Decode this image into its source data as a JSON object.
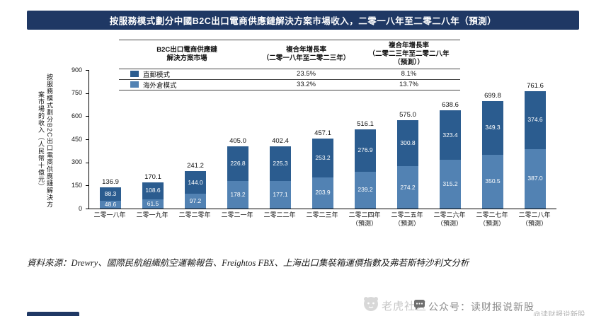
{
  "title": "按服務模式劃分中國B2C出口電商供應鏈解決方案市場收入，二零一八年至二零二八年（預測）",
  "legend_table": {
    "headers": [
      "B2C出口電商供應鏈\n解決方案市場",
      "複合年增長率\n（二零一八年至二零二三年）",
      "複合年增長率\n（二零二三年至二零二八年\n（預測））"
    ],
    "rows": [
      {
        "label": "直郵模式",
        "color": "#2B5C8F",
        "cagr_2018_2023": "23.5%",
        "cagr_2023_2028": "8.1%"
      },
      {
        "label": "海外倉模式",
        "color": "#5282B3",
        "cagr_2018_2023": "33.2%",
        "cagr_2023_2028": "13.7%"
      }
    ]
  },
  "chart_data": {
    "type": "bar",
    "stacked": true,
    "title": "按服務模式劃分中國B2C出口電商供應鏈解決方案市場收入，二零一八年至二零二八年（預測）",
    "ylabel": "按服務模式劃分B2C出口電商供應鏈解決方案市場的收入（人民幣十億元）",
    "ylim": [
      0,
      900
    ],
    "yticks": [
      0,
      150,
      300,
      450,
      600,
      750,
      900
    ],
    "grid": false,
    "legend_position": "top-table",
    "categories": [
      {
        "label": "二零一八年",
        "sub": ""
      },
      {
        "label": "二零一九年",
        "sub": ""
      },
      {
        "label": "二零二零年",
        "sub": ""
      },
      {
        "label": "二零二一年",
        "sub": ""
      },
      {
        "label": "二零二二年",
        "sub": ""
      },
      {
        "label": "二零二三年",
        "sub": ""
      },
      {
        "label": "二零二四年",
        "sub": "（預測）"
      },
      {
        "label": "二零二五年",
        "sub": "（預測）"
      },
      {
        "label": "二零二六年",
        "sub": "（預測）"
      },
      {
        "label": "二零二七年",
        "sub": "（預測）"
      },
      {
        "label": "二零二八年",
        "sub": "（預測）"
      }
    ],
    "series": [
      {
        "name": "直郵模式",
        "position": "top",
        "color": "#2B5C8F",
        "values": [
          88.3,
          108.6,
          144.0,
          226.8,
          225.3,
          253.2,
          276.9,
          300.8,
          323.4,
          349.3,
          374.6
        ]
      },
      {
        "name": "海外倉模式",
        "position": "bottom",
        "color": "#5282B3",
        "values": [
          48.6,
          61.5,
          97.2,
          178.2,
          177.1,
          203.9,
          239.2,
          274.2,
          315.2,
          350.5,
          387.0
        ]
      }
    ],
    "totals": [
      136.9,
      170.1,
      241.2,
      405.0,
      402.4,
      457.1,
      516.1,
      575.0,
      638.6,
      699.8,
      761.6
    ]
  },
  "source_note": "資料來源：Drewry、國際民航組織航空運輸報告、Freightos FBX、上海出口集裝箱運價指數及弗若斯特沙利文分析",
  "watermarks": {
    "community": "老虎社区",
    "account": "公众号：读财报说新股",
    "handle": "@读财报说新股"
  }
}
